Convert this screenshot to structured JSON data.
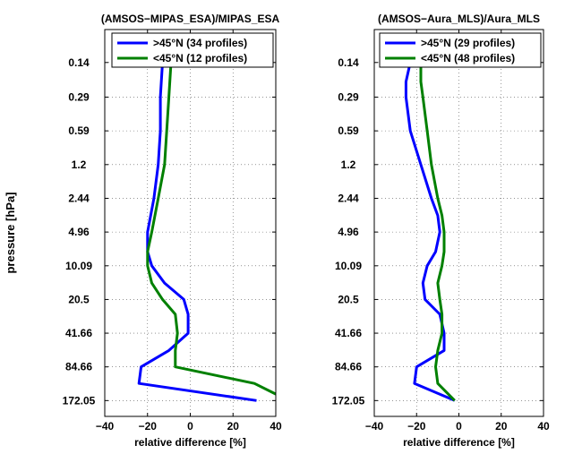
{
  "figure": {
    "ylabel": "pressure [hPa]"
  },
  "chart_data": [
    {
      "type": "line",
      "title": "(AMSOS−MIPAS_ESA)/MIPAS_ESA",
      "xlabel": "relative difference [%]",
      "ylabel": "pressure [hPa]",
      "xlim": [
        -40,
        40
      ],
      "xticks": [
        -40,
        -20,
        0,
        20,
        40
      ],
      "xtick_labels": [
        "−40",
        "−20",
        "0",
        "20",
        "40"
      ],
      "ylim": [
        0.07,
        240
      ],
      "yscale": "log",
      "yreversed": true,
      "yticks": [
        0.14,
        0.29,
        0.59,
        1.2,
        2.44,
        4.96,
        10.09,
        20.5,
        41.66,
        84.66,
        172.05
      ],
      "ytick_labels": [
        "0.14",
        "0.29",
        "0.59",
        "1.2",
        "2.44",
        "4.96",
        "10.09",
        "20.5",
        "41.66",
        "84.66",
        "172.05"
      ],
      "grid": true,
      "legend_position": "top-right",
      "series": [
        {
          "name": ">45°N (34 profiles)",
          "color": "#0000ff",
          "x": [
            -12,
            -13,
            -14,
            -14,
            -15,
            -17,
            -20,
            -20,
            -18,
            -12,
            -3,
            -1,
            -1,
            -10,
            -23,
            -24,
            31
          ],
          "y": [
            0.105,
            0.14,
            0.29,
            0.59,
            1.2,
            2.44,
            4.96,
            7.5,
            10.09,
            14.5,
            20.5,
            28,
            41.66,
            60,
            84.66,
            120,
            172.05
          ]
        },
        {
          "name": "<45°N (12 profiles)",
          "color": "#008000",
          "x": [
            -8,
            -9,
            -10,
            -11,
            -12,
            -15,
            -18,
            -20,
            -20,
            -18,
            -13,
            -7,
            -6,
            -7,
            -7,
            30,
            40
          ],
          "y": [
            0.105,
            0.14,
            0.29,
            0.59,
            1.2,
            2.44,
            4.96,
            7.5,
            10.09,
            14.5,
            20.5,
            28,
            41.66,
            60,
            84.66,
            120,
            150
          ]
        }
      ]
    },
    {
      "type": "line",
      "title": "(AMSOS−Aura_MLS)/Aura_MLS",
      "xlabel": "relative difference [%]",
      "ylabel": "",
      "xlim": [
        -40,
        40
      ],
      "xticks": [
        -40,
        -20,
        0,
        20,
        40
      ],
      "xtick_labels": [
        "−40",
        "−20",
        "0",
        "20",
        "40"
      ],
      "ylim": [
        0.07,
        240
      ],
      "yscale": "log",
      "yreversed": true,
      "yticks": [
        0.14,
        0.29,
        0.59,
        1.2,
        2.44,
        4.96,
        10.09,
        20.5,
        41.66,
        84.66,
        172.05
      ],
      "ytick_labels": [
        "0.14",
        "0.29",
        "0.59",
        "1.2",
        "2.44",
        "4.96",
        "10.09",
        "20.5",
        "41.66",
        "84.66",
        "172.05"
      ],
      "grid": true,
      "legend_position": "top-right",
      "series": [
        {
          "name": ">45°N (29 profiles)",
          "color": "#0000ff",
          "x": [
            -19,
            -23,
            -25,
            -25,
            -23,
            -18,
            -13,
            -10,
            -9,
            -11,
            -15,
            -17,
            -16,
            -9,
            -7,
            -7,
            -20,
            -21,
            -2
          ],
          "y": [
            0.105,
            0.14,
            0.21,
            0.29,
            0.59,
            1.2,
            2.44,
            3.5,
            4.96,
            7.5,
            10.09,
            14.5,
            20.5,
            28,
            41.66,
            60,
            84.66,
            120,
            172.05
          ]
        },
        {
          "name": "<45°N (48 profiles)",
          "color": "#008000",
          "x": [
            -17,
            -18,
            -18,
            -17,
            -15,
            -13,
            -10,
            -8,
            -7,
            -7,
            -8,
            -10,
            -9,
            -8,
            -8,
            -10,
            -11,
            -10,
            -2
          ],
          "y": [
            0.105,
            0.14,
            0.21,
            0.29,
            0.59,
            1.2,
            2.44,
            3.5,
            4.96,
            7.5,
            10.09,
            14.5,
            20.5,
            28,
            41.66,
            60,
            84.66,
            120,
            172.05
          ]
        }
      ]
    }
  ]
}
